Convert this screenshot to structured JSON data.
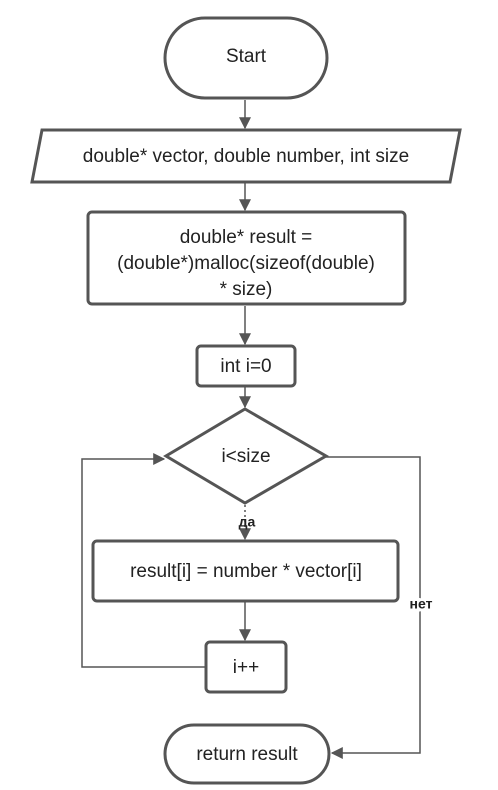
{
  "flowchart": {
    "start": "Start",
    "input": "double* vector, double number, int size",
    "alloc": {
      "line1": "double* result =",
      "line2": "(double*)malloc(sizeof(double)",
      "line3": "* size)"
    },
    "init": "int i=0",
    "condition": "i<size",
    "body": "result[i] = number * vector[i]",
    "increment": "i++",
    "end": "return result",
    "yes_label": "да",
    "no_label": "нет"
  },
  "colors": {
    "stroke": "#555555",
    "text": "#222222",
    "background": "#ffffff"
  }
}
